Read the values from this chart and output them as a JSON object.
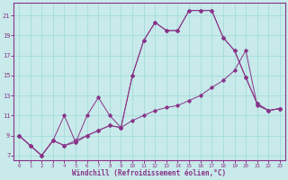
{
  "xlabel": "Windchill (Refroidissement éolien,°C)",
  "bg_color": "#c8eaea",
  "grid_color": "#aadddd",
  "line_color": "#883388",
  "xlim": [
    -0.5,
    23.5
  ],
  "ylim": [
    6.5,
    22.3
  ],
  "xticks": [
    0,
    1,
    2,
    3,
    4,
    5,
    6,
    7,
    8,
    9,
    10,
    11,
    12,
    13,
    14,
    15,
    16,
    17,
    18,
    19,
    20,
    21,
    22,
    23
  ],
  "yticks": [
    7,
    9,
    11,
    13,
    15,
    17,
    19,
    21
  ],
  "curves": [
    {
      "x": [
        0,
        1,
        2,
        3,
        4,
        5,
        6,
        7,
        8,
        9,
        10,
        11,
        12,
        13,
        14,
        15,
        16,
        17,
        18,
        19,
        20,
        21,
        22,
        23
      ],
      "y": [
        9.0,
        8.0,
        7.0,
        8.5,
        8.0,
        8.5,
        9.0,
        9.5,
        10.0,
        9.8,
        10.5,
        11.0,
        11.5,
        11.8,
        12.0,
        12.5,
        13.0,
        13.8,
        14.5,
        15.5,
        17.5,
        12.0,
        11.5,
        11.7
      ]
    },
    {
      "x": [
        0,
        1,
        2,
        3,
        4,
        5,
        6,
        7,
        8,
        9,
        10,
        11,
        12,
        13,
        14,
        15,
        16,
        17,
        18,
        19,
        20,
        21,
        22,
        23
      ],
      "y": [
        9.0,
        8.0,
        7.0,
        8.5,
        11.0,
        8.3,
        11.0,
        12.8,
        11.0,
        9.8,
        15.0,
        18.5,
        20.3,
        19.5,
        19.5,
        21.5,
        21.5,
        21.5,
        18.8,
        17.5,
        14.8,
        12.2,
        11.5,
        11.7
      ]
    },
    {
      "x": [
        0,
        1,
        2,
        3,
        4,
        5,
        6,
        7,
        8,
        9,
        10,
        11,
        12,
        13,
        14,
        15,
        16,
        17,
        18,
        19,
        20,
        21,
        22,
        23
      ],
      "y": [
        9.0,
        8.0,
        7.0,
        8.5,
        8.0,
        8.3,
        9.0,
        9.5,
        10.0,
        9.8,
        15.0,
        18.5,
        20.3,
        19.5,
        19.5,
        21.5,
        21.5,
        21.5,
        18.8,
        17.5,
        14.8,
        12.2,
        11.5,
        11.7
      ]
    }
  ]
}
